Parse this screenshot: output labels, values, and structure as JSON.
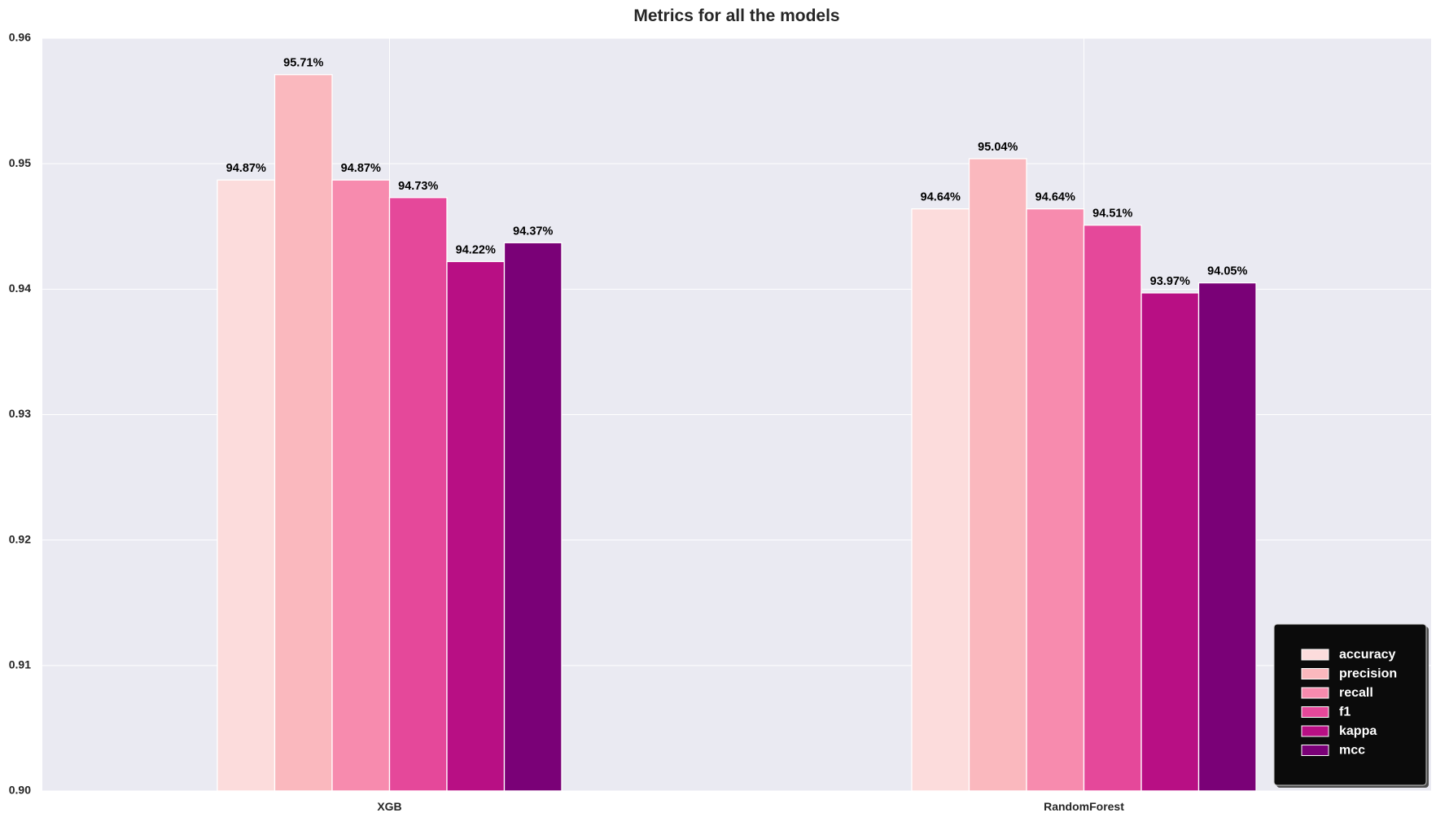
{
  "chart_data": {
    "type": "bar",
    "title": "Metrics for all the models",
    "xlabel": "",
    "ylabel": "",
    "categories": [
      "XGB",
      "RandomForest"
    ],
    "ylim": [
      0.9,
      0.96
    ],
    "yticks": [
      "0.90",
      "0.91",
      "0.92",
      "0.93",
      "0.94",
      "0.95",
      "0.96"
    ],
    "grid": true,
    "legend_position": "bottom-right",
    "series": [
      {
        "name": "accuracy",
        "color": "#fcdcdc",
        "values": [
          0.9487,
          0.9464
        ],
        "labels": [
          "94.87%",
          "94.64%"
        ]
      },
      {
        "name": "precision",
        "color": "#fab8be",
        "values": [
          0.9571,
          0.9504
        ],
        "labels": [
          "95.71%",
          "95.04%"
        ]
      },
      {
        "name": "recall",
        "color": "#f78bae",
        "values": [
          0.9487,
          0.9464
        ],
        "labels": [
          "94.87%",
          "94.64%"
        ]
      },
      {
        "name": "f1",
        "color": "#e5489a",
        "values": [
          0.9473,
          0.9451
        ],
        "labels": [
          "94.73%",
          "94.51%"
        ]
      },
      {
        "name": "kappa",
        "color": "#b80f84",
        "values": [
          0.9422,
          0.9397
        ],
        "labels": [
          "94.22%",
          "93.97%"
        ]
      },
      {
        "name": "mcc",
        "color": "#7a0177",
        "values": [
          0.9437,
          0.9405
        ],
        "labels": [
          "94.37%",
          "94.05%"
        ]
      }
    ]
  }
}
